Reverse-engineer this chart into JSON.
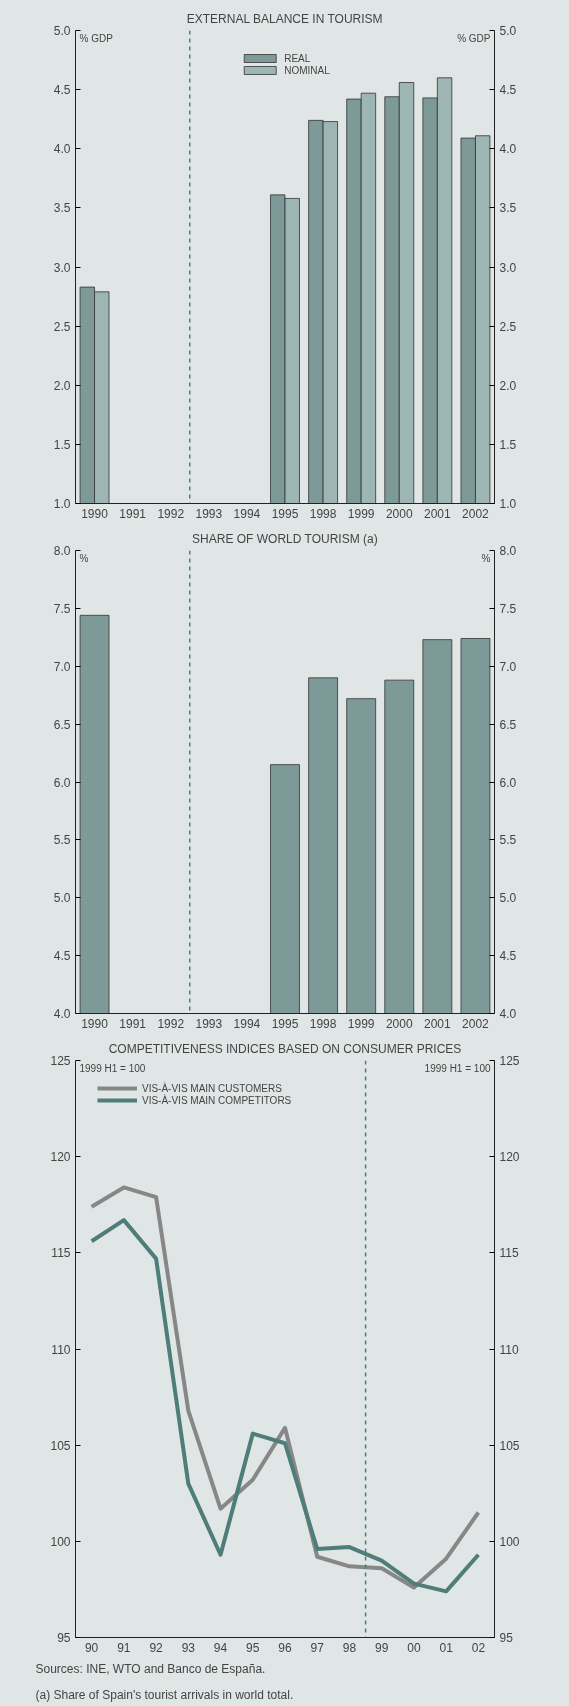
{
  "chart_data": [
    {
      "type": "bar",
      "title": "EXTERNAL BALANCE IN TOURISM",
      "ylabel": "% GDP",
      "y2label": "% GDP",
      "categories": [
        "1990",
        "1991",
        "1992",
        "1993",
        "1994",
        "1995",
        "1998",
        "1999",
        "2000",
        "2001",
        "2002"
      ],
      "series": [
        {
          "name": "REAL",
          "color": "#7d9a98",
          "values": [
            2.83,
            null,
            null,
            null,
            null,
            3.61,
            4.24,
            4.42,
            4.44,
            4.43,
            4.09
          ]
        },
        {
          "name": "NOMINAL",
          "color": "#9db5b3",
          "values": [
            2.79,
            null,
            null,
            null,
            null,
            3.58,
            4.23,
            4.47,
            4.56,
            4.6,
            4.11
          ]
        }
      ],
      "ylim": [
        1.0,
        5.0
      ],
      "yticks": [
        {
          "value": 1,
          "label": "1.0"
        },
        1.5,
        {
          "value": 2,
          "label": "2.0"
        },
        2.5,
        {
          "value": 3,
          "label": "3.0"
        },
        3.5,
        {
          "value": 4,
          "label": "4.0"
        },
        4.5,
        {
          "value": 5,
          "label": "5.0"
        }
      ],
      "y2lim": [
        1.0,
        5.0
      ],
      "y2ticks": [
        {
          "value": 1,
          "label": "1.0"
        },
        1.5,
        {
          "value": 2,
          "label": "2.0"
        },
        2.5,
        {
          "value": 3,
          "label": "3.0"
        },
        3.5,
        {
          "value": 4,
          "label": "4.0"
        },
        4.5,
        {
          "value": 5,
          "label": "5.0"
        }
      ],
      "ref_lines": [
        {
          "axis": "x",
          "value": "1993",
          "color": "#4f7d79",
          "line_style": "dashed"
        }
      ],
      "legend": "top",
      "grid": false
    },
    {
      "type": "bar",
      "title": "SHARE OF WORLD TOURISM (a)",
      "ylabel": "%",
      "y2label": "%",
      "categories": [
        "1990",
        "1991",
        "1992",
        "1993",
        "1994",
        "1995",
        "1998",
        "1999",
        "2000",
        "2001",
        "2002"
      ],
      "series": [
        {
          "color": "#7d9a98",
          "values": [
            7.44,
            null,
            null,
            null,
            null,
            6.15,
            6.9,
            6.72,
            6.88,
            7.23,
            7.24
          ]
        }
      ],
      "ylim": [
        4.0,
        8.0
      ],
      "yticks": [
        {
          "value": 4,
          "label": "4.0"
        },
        4.5,
        {
          "value": 5,
          "label": "5.0"
        },
        5.5,
        {
          "value": 6,
          "label": "6.0"
        },
        6.5,
        {
          "value": 7,
          "label": "7.0"
        },
        7.5,
        {
          "value": 8,
          "label": "8.0"
        }
      ],
      "y2lim": [
        4.0,
        8.0
      ],
      "y2ticks": [
        {
          "value": 4,
          "label": "4.0"
        },
        4.5,
        {
          "value": 5,
          "label": "5.0"
        },
        5.5,
        {
          "value": 6,
          "label": "6.0"
        },
        6.5,
        {
          "value": 7,
          "label": "7.0"
        },
        7.5,
        {
          "value": 8,
          "label": "8.0"
        }
      ],
      "ref_lines": [
        {
          "axis": "x",
          "value": "1993",
          "color": "#4f7d79",
          "line_style": "dashed"
        }
      ],
      "grid": false
    },
    {
      "type": "line",
      "title": "COMPETITIVENESS INDICES BASED ON CONSUMER PRICES",
      "ylabel": "1999 H1 = 100",
      "y2label": "1999 H1 = 100",
      "categories": [
        "90",
        "91",
        "92",
        "93",
        "94",
        "95",
        "96",
        "97",
        "98",
        "99",
        "00",
        "01",
        "02"
      ],
      "series": [
        {
          "name": "VIS-À-VIS MAIN CUSTOMERS",
          "color": "#878787",
          "values": [
            117.4,
            118.4,
            117.9,
            106.8,
            101.7,
            103.2,
            105.9,
            99.2,
            98.7,
            98.6,
            97.6,
            99.1,
            101.5
          ]
        },
        {
          "name": "VIS-À-VIS MAIN COMPETITORS",
          "color": "#4f7d79",
          "values": [
            115.6,
            116.7,
            114.7,
            103.0,
            99.3,
            105.6,
            105.1,
            99.6,
            99.7,
            99.0,
            97.8,
            97.4,
            99.3
          ]
        }
      ],
      "ylim": [
        95,
        125
      ],
      "yticks": [
        95,
        100,
        105,
        110,
        115,
        120,
        125
      ],
      "y2lim": [
        95,
        125
      ],
      "y2ticks": [
        95,
        100,
        105,
        110,
        115,
        120,
        125
      ],
      "ref_lines": [
        {
          "axis": "x",
          "value": "99",
          "color": "#4f7d79",
          "line_style": "dashed"
        }
      ],
      "legend": "top left",
      "grid": false,
      "marker": "none",
      "line_style": "solid",
      "annotations": [
        "Sources: INE, WTO and Banco de España.",
        "(a)   Share of Spain's tourist arrivals in world total."
      ]
    }
  ]
}
